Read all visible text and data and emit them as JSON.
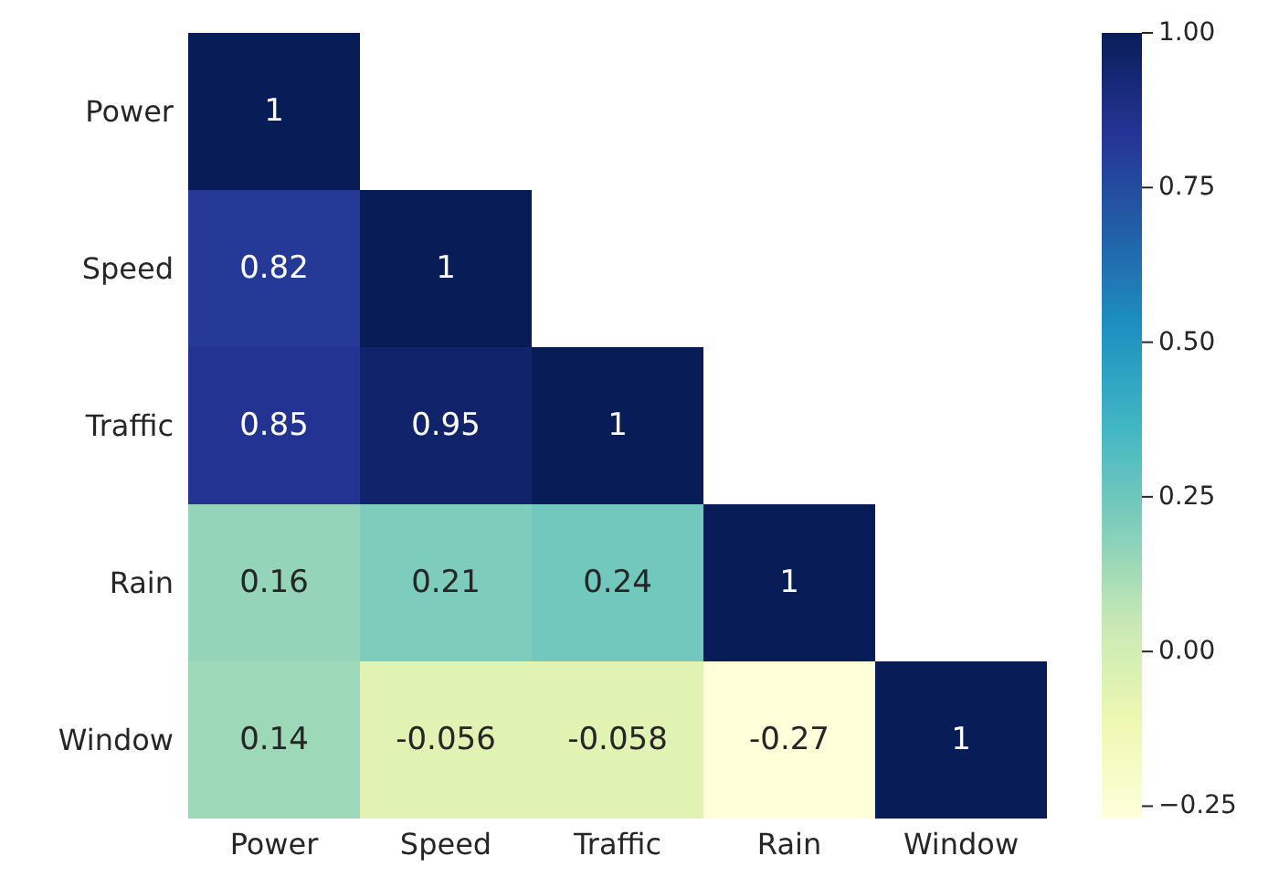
{
  "chart_data": {
    "type": "heatmap",
    "categories": [
      "Power",
      "Speed",
      "Traffic",
      "Rain",
      "Window"
    ],
    "y_categories": [
      "Power",
      "Speed",
      "Traffic",
      "Rain",
      "Window"
    ],
    "cells": [
      [
        1,
        null,
        null,
        null,
        null
      ],
      [
        0.82,
        1,
        null,
        null,
        null
      ],
      [
        0.85,
        0.95,
        1,
        null,
        null
      ],
      [
        0.16,
        0.21,
        0.24,
        1,
        null
      ],
      [
        0.14,
        -0.056,
        -0.058,
        -0.27,
        1
      ]
    ],
    "data_labels": true,
    "clim": [
      -0.27,
      1
    ],
    "cticks": [
      {
        "value": -0.25,
        "label": "−0.25"
      },
      {
        "value": 0,
        "label": "0.00"
      },
      {
        "value": 0.25,
        "label": "0.25"
      },
      {
        "value": 0.5,
        "label": "0.50"
      },
      {
        "value": 0.75,
        "label": "0.75"
      },
      {
        "value": 1,
        "label": "1.00"
      }
    ]
  }
}
